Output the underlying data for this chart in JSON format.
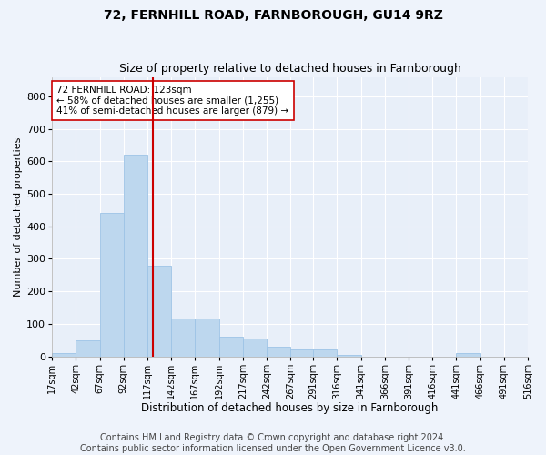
{
  "title1": "72, FERNHILL ROAD, FARNBOROUGH, GU14 9RZ",
  "title2": "Size of property relative to detached houses in Farnborough",
  "xlabel": "Distribution of detached houses by size in Farnborough",
  "ylabel": "Number of detached properties",
  "footer1": "Contains HM Land Registry data © Crown copyright and database right 2024.",
  "footer2": "Contains public sector information licensed under the Open Government Licence v3.0.",
  "annotation_line1": "72 FERNHILL ROAD: 123sqm",
  "annotation_line2": "← 58% of detached houses are smaller (1,255)",
  "annotation_line3": "41% of semi-detached houses are larger (879) →",
  "bar_color": "#BDD7EE",
  "bar_edgecolor": "#9DC3E6",
  "vline_color": "#CC0000",
  "vline_x": 123,
  "bin_edges": [
    17,
    42,
    67,
    92,
    117,
    142,
    167,
    192,
    217,
    242,
    267,
    291,
    316,
    341,
    366,
    391,
    416,
    441,
    466,
    491,
    516
  ],
  "bar_heights": [
    10,
    50,
    440,
    620,
    280,
    115,
    115,
    60,
    55,
    30,
    20,
    20,
    5,
    0,
    0,
    0,
    0,
    10,
    0,
    0
  ],
  "ylim": [
    0,
    860
  ],
  "yticks": [
    0,
    100,
    200,
    300,
    400,
    500,
    600,
    700,
    800
  ],
  "background_color": "#EEF3FB",
  "plot_bg_color": "#E8EFF9",
  "grid_color": "#FFFFFF",
  "title1_fontsize": 10,
  "title2_fontsize": 9,
  "xlabel_fontsize": 8.5,
  "ylabel_fontsize": 8,
  "footer_fontsize": 7,
  "annotation_fontsize": 7.5,
  "tick_fontsize": 7,
  "ytick_fontsize": 8
}
